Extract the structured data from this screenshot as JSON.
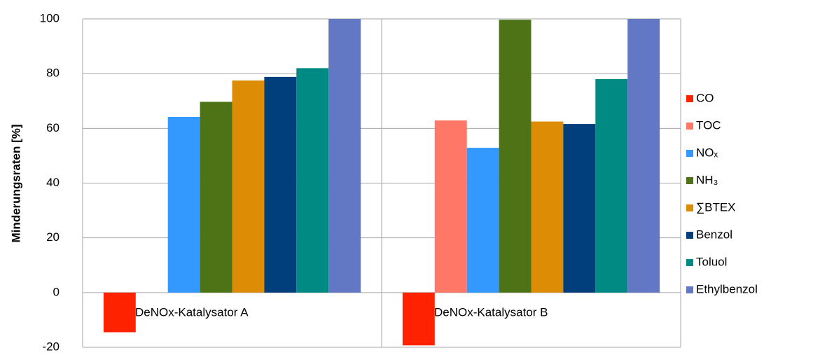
{
  "chart_data": {
    "type": "bar",
    "y_label": "Minderungsraten [%]",
    "categories": [
      "DeNOx-Katalysator A",
      "DeNOx-Katalysator B"
    ],
    "series": [
      {
        "name": "CO",
        "color": "#ff2200",
        "values": [
          -14.5,
          -19.3
        ]
      },
      {
        "name": "TOC",
        "color": "#ff7766",
        "values": [
          null,
          62.9
        ]
      },
      {
        "name": "NOₓ",
        "color": "#3399ff",
        "values": [
          64.2,
          52.9
        ]
      },
      {
        "name": "NH₃",
        "color": "#4e7316",
        "values": [
          69.7,
          99.7
        ]
      },
      {
        "name": "∑BTEX",
        "color": "#dd8c06",
        "values": [
          77.5,
          62.5
        ]
      },
      {
        "name": "Benzol",
        "color": "#003f7c",
        "values": [
          78.8,
          61.6
        ]
      },
      {
        "name": "Toluol",
        "color": "#008a84",
        "values": [
          82,
          78
        ]
      },
      {
        "name": "Ethylbenzol",
        "color": "#6278c4",
        "values": [
          100,
          100
        ]
      }
    ],
    "ylim": [
      -20,
      100
    ],
    "yticks": [
      -20,
      0,
      20,
      40,
      60,
      80,
      100
    ],
    "grid": true,
    "legend": "right"
  }
}
